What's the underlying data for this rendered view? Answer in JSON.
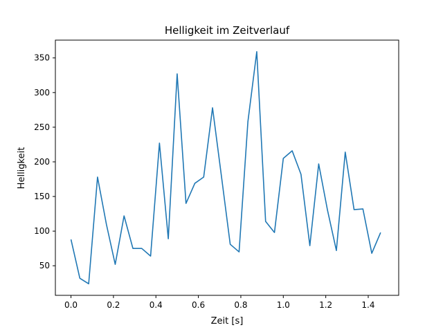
{
  "chart_data": {
    "type": "line",
    "title": "Helligkeit im Zeitverlauf",
    "xlabel": "Zeit [s]",
    "ylabel": "Helligkeit",
    "xlim": [
      -0.0735,
      1.5435
    ],
    "ylim": [
      7.3,
      375.7
    ],
    "grid": false,
    "xticks": [
      0.0,
      0.2,
      0.4,
      0.6,
      0.8,
      1.0,
      1.2,
      1.4
    ],
    "xtick_labels": [
      "0.0",
      "0.2",
      "0.4",
      "0.6",
      "0.8",
      "1.0",
      "1.2",
      "1.4"
    ],
    "yticks": [
      50,
      100,
      150,
      200,
      250,
      300,
      350
    ],
    "ytick_labels": [
      "50",
      "100",
      "150",
      "200",
      "250",
      "300",
      "350"
    ],
    "colors": {
      "line": "#1f77b4"
    },
    "series": [
      {
        "x": [
          0.0,
          0.0417,
          0.0833,
          0.125,
          0.1667,
          0.2083,
          0.25,
          0.2917,
          0.3333,
          0.375,
          0.4167,
          0.4583,
          0.5,
          0.5417,
          0.5833,
          0.625,
          0.6667,
          0.7083,
          0.75,
          0.7917,
          0.8333,
          0.875,
          0.9167,
          0.9583,
          1.0,
          1.0417,
          1.0833,
          1.125,
          1.1667,
          1.2083,
          1.25,
          1.2917,
          1.3333,
          1.375,
          1.4167,
          1.4583
        ],
        "values": [
          88,
          32,
          24,
          178,
          110,
          52,
          122,
          75,
          75,
          64,
          227,
          89,
          327,
          140,
          169,
          178,
          278,
          180,
          81,
          70,
          258,
          359,
          114,
          98,
          205,
          216,
          182,
          79,
          197,
          130,
          72,
          214,
          131,
          132,
          68,
          98
        ]
      }
    ]
  }
}
